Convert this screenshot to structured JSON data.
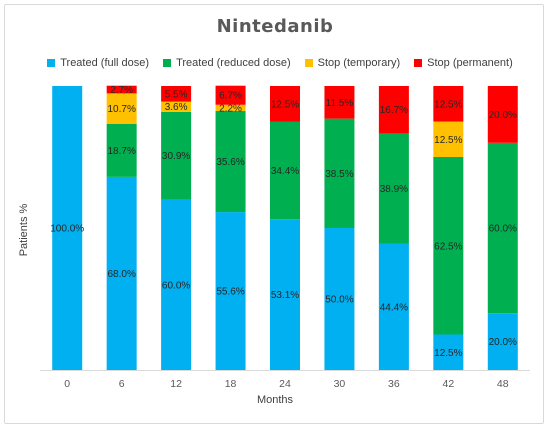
{
  "chart_data": {
    "type": "bar",
    "stacked": true,
    "title": "Nintedanib",
    "xlabel": "Months",
    "ylabel": "Patients %",
    "ylim": [
      0,
      100
    ],
    "grid": false,
    "legend_position": "top",
    "categories": [
      "0",
      "6",
      "12",
      "18",
      "24",
      "30",
      "36",
      "42",
      "48"
    ],
    "series": [
      {
        "name": "Treated (full dose)",
        "color": "#00b0f0",
        "values": [
          100.0,
          68.0,
          60.0,
          55.6,
          53.1,
          50.0,
          44.4,
          12.5,
          20.0
        ],
        "labels": [
          "100.0%",
          "68.0%",
          "60.0%",
          "55.6%",
          "53.1%",
          "50.0%",
          "44.4%",
          "12.5%",
          "20.0%"
        ]
      },
      {
        "name": "Treated (reduced dose)",
        "color": "#00b050",
        "values": [
          0,
          18.7,
          30.9,
          35.6,
          34.4,
          38.5,
          38.9,
          62.5,
          60.0
        ],
        "labels": [
          "",
          "18.7%",
          "30.9%",
          "35.6%",
          "34.4%",
          "38.5%",
          "38.9%",
          "62.5%",
          "60.0%"
        ]
      },
      {
        "name": "Stop (temporary)",
        "color": "#ffc000",
        "values": [
          0,
          10.7,
          3.6,
          2.2,
          0,
          0,
          0,
          12.5,
          0
        ],
        "labels": [
          "",
          "10.7%",
          "3.6%",
          "2.2%",
          "",
          "",
          "",
          "12.5%",
          ""
        ]
      },
      {
        "name": "Stop (permanent)",
        "color": "#ff0000",
        "values": [
          0,
          2.7,
          5.5,
          6.7,
          12.5,
          11.5,
          16.7,
          12.5,
          20.0
        ],
        "labels": [
          "",
          "2.7%",
          "5.5%",
          "6.7%",
          "12.5%",
          "11.5%",
          "16.7%",
          "12.5%",
          "20.0%"
        ]
      }
    ]
  }
}
